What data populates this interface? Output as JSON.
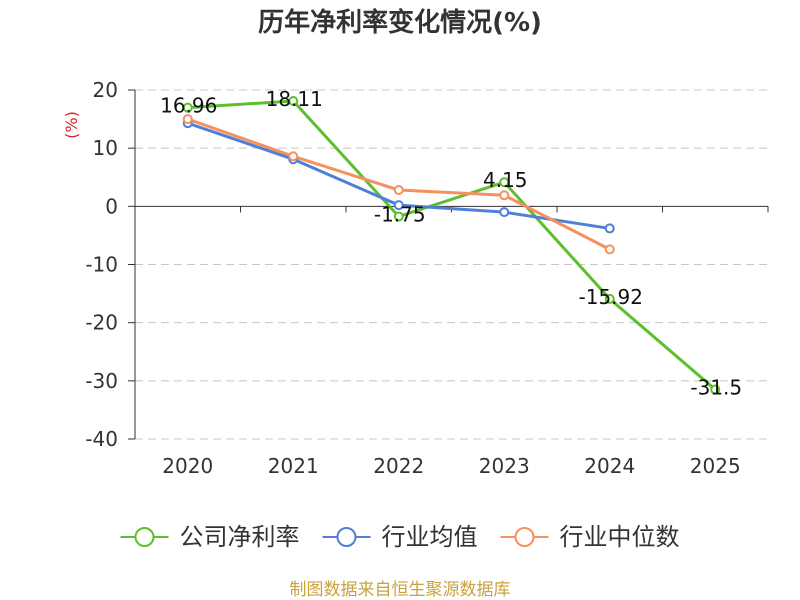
{
  "source_note": "制图数据来自恒生聚源数据库",
  "chart_data": {
    "type": "line",
    "title": "历年净利率变化情况(%)",
    "ylabel": "(%)",
    "categories": [
      "2020",
      "2021",
      "2022",
      "2023",
      "2024",
      "2025"
    ],
    "ylim": [
      -40,
      20
    ],
    "yticks": [
      20,
      10,
      0,
      -10,
      -20,
      -30,
      -40
    ],
    "grid": true,
    "legend_position": "bottom",
    "series": [
      {
        "name": "公司净利率",
        "color": "#5cbf2b",
        "data_labels": true,
        "values": [
          16.96,
          18.11,
          -1.75,
          4.15,
          -15.92,
          -31.5
        ]
      },
      {
        "name": "行业均值",
        "color": "#4f7fd8",
        "data_labels": false,
        "values": [
          14.3,
          8.1,
          0.2,
          -1.0,
          -3.8,
          null
        ]
      },
      {
        "name": "行业中位数",
        "color": "#f6905c",
        "data_labels": false,
        "values": [
          15.0,
          8.6,
          2.8,
          1.9,
          -7.4,
          null
        ]
      }
    ]
  }
}
